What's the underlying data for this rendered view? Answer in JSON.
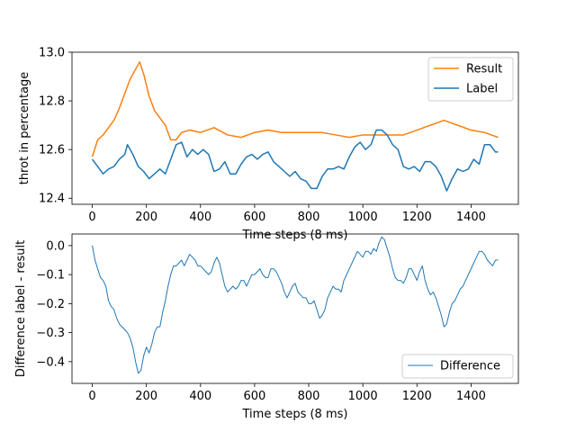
{
  "chart_data": [
    {
      "type": "line",
      "xlabel": "Time steps (8 ms)",
      "ylabel": "throt in percentage",
      "xlim": [
        -75,
        1575
      ],
      "ylim": [
        12.375,
        13.0
      ],
      "xticks": [
        0,
        200,
        400,
        600,
        800,
        1000,
        1200,
        1400
      ],
      "yticks": [
        12.4,
        12.6,
        12.8,
        13.0
      ],
      "ytick_labels": [
        "12.4",
        "12.6",
        "12.8",
        "13.0"
      ],
      "grid": false,
      "legend_position": "top-right",
      "series": [
        {
          "name": "Result",
          "color": "#ff7f0e",
          "x": [
            0,
            20,
            40,
            60,
            80,
            100,
            120,
            140,
            160,
            175,
            190,
            210,
            230,
            250,
            270,
            290,
            310,
            330,
            360,
            400,
            450,
            500,
            550,
            600,
            650,
            700,
            750,
            800,
            850,
            900,
            950,
            1000,
            1050,
            1100,
            1150,
            1200,
            1250,
            1300,
            1350,
            1400,
            1450,
            1500
          ],
          "y": [
            12.57,
            12.64,
            12.66,
            12.69,
            12.72,
            12.77,
            12.83,
            12.89,
            12.93,
            12.96,
            12.91,
            12.82,
            12.76,
            12.73,
            12.7,
            12.64,
            12.64,
            12.67,
            12.68,
            12.67,
            12.69,
            12.66,
            12.65,
            12.67,
            12.68,
            12.67,
            12.67,
            12.67,
            12.67,
            12.66,
            12.65,
            12.66,
            12.66,
            12.66,
            12.66,
            12.68,
            12.7,
            12.72,
            12.7,
            12.68,
            12.67,
            12.65
          ]
        },
        {
          "name": "Label",
          "color": "#1f77b4",
          "x": [
            0,
            20,
            40,
            60,
            80,
            100,
            120,
            130,
            150,
            170,
            190,
            210,
            230,
            250,
            270,
            290,
            310,
            330,
            350,
            370,
            390,
            410,
            430,
            450,
            470,
            490,
            510,
            530,
            550,
            570,
            590,
            610,
            630,
            650,
            670,
            690,
            710,
            730,
            750,
            770,
            790,
            810,
            830,
            850,
            870,
            890,
            910,
            930,
            950,
            970,
            990,
            1010,
            1030,
            1050,
            1070,
            1090,
            1110,
            1130,
            1150,
            1170,
            1190,
            1210,
            1230,
            1250,
            1270,
            1290,
            1310,
            1330,
            1350,
            1370,
            1390,
            1410,
            1430,
            1450,
            1470,
            1490,
            1500
          ],
          "y": [
            12.56,
            12.53,
            12.5,
            12.52,
            12.53,
            12.56,
            12.58,
            12.62,
            12.58,
            12.53,
            12.51,
            12.48,
            12.5,
            12.52,
            12.5,
            12.56,
            12.62,
            12.63,
            12.57,
            12.6,
            12.58,
            12.6,
            12.58,
            12.51,
            12.52,
            12.55,
            12.5,
            12.5,
            12.54,
            12.57,
            12.58,
            12.56,
            12.58,
            12.59,
            12.55,
            12.53,
            12.51,
            12.49,
            12.51,
            12.48,
            12.47,
            12.44,
            12.44,
            12.49,
            12.52,
            12.52,
            12.53,
            12.52,
            12.57,
            12.61,
            12.63,
            12.6,
            12.62,
            12.68,
            12.68,
            12.66,
            12.62,
            12.6,
            12.53,
            12.52,
            12.53,
            12.51,
            12.55,
            12.55,
            12.53,
            12.49,
            12.43,
            12.48,
            12.52,
            12.51,
            12.52,
            12.56,
            12.54,
            12.62,
            12.62,
            12.59,
            12.59
          ]
        }
      ]
    },
    {
      "type": "line",
      "xlabel": "Time steps (8 ms)",
      "ylabel": "Difference label - result",
      "xlim": [
        -75,
        1575
      ],
      "ylim": [
        -0.475,
        0.04
      ],
      "xticks": [
        0,
        200,
        400,
        600,
        800,
        1000,
        1200,
        1400
      ],
      "yticks": [
        0.0,
        -0.1,
        -0.2,
        -0.3,
        -0.4
      ],
      "ytick_labels": [
        "0.0",
        "−0.1",
        "−0.2",
        "−0.3",
        "−0.4"
      ],
      "grid": false,
      "legend_position": "bottom-right",
      "series": [
        {
          "name": "Difference",
          "color": "#1f77b4",
          "x": [
            0,
            10,
            20,
            30,
            40,
            50,
            60,
            70,
            80,
            90,
            100,
            110,
            120,
            130,
            140,
            150,
            160,
            170,
            180,
            190,
            200,
            210,
            220,
            230,
            240,
            250,
            260,
            270,
            280,
            290,
            300,
            310,
            320,
            330,
            340,
            350,
            360,
            370,
            380,
            390,
            400,
            410,
            420,
            430,
            440,
            450,
            460,
            470,
            480,
            490,
            500,
            510,
            520,
            530,
            540,
            550,
            560,
            570,
            580,
            590,
            600,
            610,
            620,
            630,
            640,
            650,
            660,
            670,
            680,
            690,
            700,
            710,
            720,
            730,
            740,
            750,
            760,
            770,
            780,
            790,
            800,
            810,
            820,
            830,
            840,
            850,
            860,
            870,
            880,
            890,
            900,
            910,
            920,
            930,
            940,
            950,
            960,
            970,
            980,
            990,
            1000,
            1010,
            1020,
            1030,
            1040,
            1050,
            1060,
            1070,
            1080,
            1090,
            1100,
            1110,
            1120,
            1130,
            1140,
            1150,
            1160,
            1170,
            1180,
            1190,
            1200,
            1210,
            1220,
            1230,
            1240,
            1250,
            1260,
            1270,
            1280,
            1290,
            1300,
            1310,
            1320,
            1330,
            1340,
            1350,
            1360,
            1370,
            1380,
            1390,
            1400,
            1410,
            1420,
            1430,
            1440,
            1450,
            1460,
            1470,
            1480,
            1490,
            1500
          ],
          "y": [
            0.0,
            -0.05,
            -0.08,
            -0.11,
            -0.12,
            -0.14,
            -0.19,
            -0.21,
            -0.22,
            -0.25,
            -0.27,
            -0.28,
            -0.29,
            -0.3,
            -0.32,
            -0.35,
            -0.4,
            -0.44,
            -0.43,
            -0.38,
            -0.35,
            -0.37,
            -0.34,
            -0.3,
            -0.28,
            -0.28,
            -0.23,
            -0.19,
            -0.14,
            -0.1,
            -0.07,
            -0.07,
            -0.06,
            -0.05,
            -0.07,
            -0.05,
            -0.03,
            -0.04,
            -0.05,
            -0.07,
            -0.07,
            -0.08,
            -0.09,
            -0.1,
            -0.09,
            -0.06,
            -0.04,
            -0.06,
            -0.1,
            -0.14,
            -0.16,
            -0.15,
            -0.14,
            -0.15,
            -0.14,
            -0.12,
            -0.12,
            -0.14,
            -0.12,
            -0.1,
            -0.1,
            -0.09,
            -0.08,
            -0.1,
            -0.11,
            -0.11,
            -0.08,
            -0.08,
            -0.09,
            -0.11,
            -0.13,
            -0.16,
            -0.18,
            -0.16,
            -0.14,
            -0.13,
            -0.16,
            -0.17,
            -0.18,
            -0.18,
            -0.2,
            -0.2,
            -0.19,
            -0.22,
            -0.25,
            -0.24,
            -0.22,
            -0.18,
            -0.16,
            -0.14,
            -0.15,
            -0.15,
            -0.16,
            -0.12,
            -0.1,
            -0.08,
            -0.06,
            -0.04,
            -0.02,
            -0.03,
            -0.04,
            -0.02,
            -0.02,
            -0.03,
            -0.01,
            -0.02,
            0.01,
            0.03,
            0.02,
            -0.01,
            -0.04,
            -0.08,
            -0.11,
            -0.12,
            -0.12,
            -0.13,
            -0.11,
            -0.08,
            -0.08,
            -0.1,
            -0.12,
            -0.09,
            -0.07,
            -0.12,
            -0.15,
            -0.17,
            -0.16,
            -0.18,
            -0.21,
            -0.24,
            -0.28,
            -0.27,
            -0.23,
            -0.2,
            -0.19,
            -0.17,
            -0.15,
            -0.14,
            -0.12,
            -0.1,
            -0.08,
            -0.06,
            -0.04,
            -0.02,
            -0.02,
            -0.03,
            -0.05,
            -0.06,
            -0.07,
            -0.05,
            -0.05
          ]
        }
      ]
    }
  ]
}
